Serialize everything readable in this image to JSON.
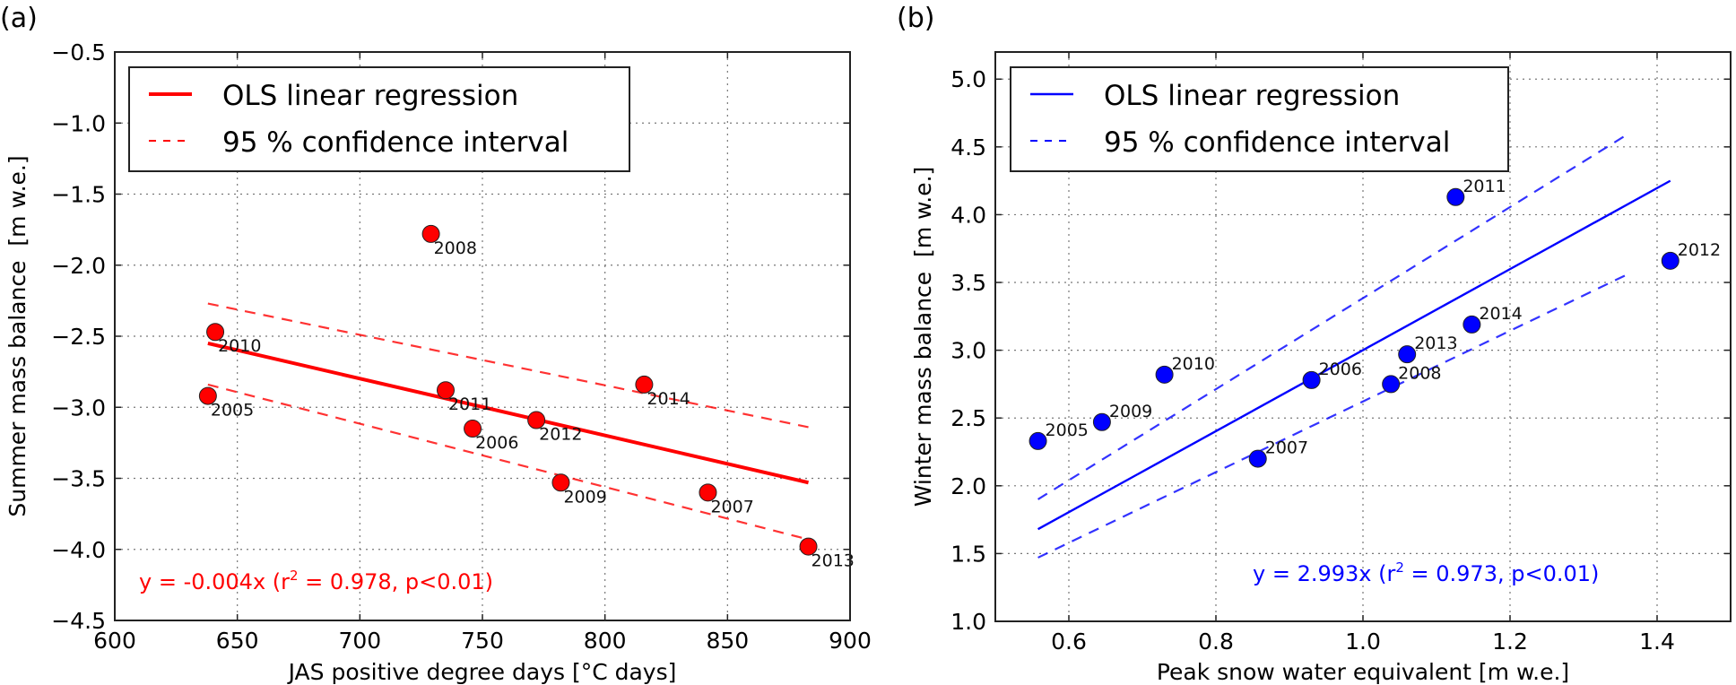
{
  "chart_data": [
    {
      "type": "scatter",
      "panel_label": "(a)",
      "xlabel": "JAS positive degree days [°C days]",
      "ylabel": "Summer mass balance  [m w.e.]",
      "xlim": [
        600,
        900
      ],
      "ylim": [
        -4.5,
        -0.5
      ],
      "xticks": [
        600,
        650,
        700,
        750,
        800,
        850,
        900
      ],
      "xtick_labels": [
        "600",
        "650",
        "700",
        "750",
        "800",
        "850",
        "900"
      ],
      "yticks": [
        -4.5,
        -4.0,
        -3.5,
        -3.0,
        -2.5,
        -2.0,
        -1.5,
        -1.0,
        -0.5
      ],
      "ytick_labels": [
        "−4.5",
        "−4.0",
        "−3.5",
        "−3.0",
        "−2.5",
        "−2.0",
        "−1.5",
        "−1.0",
        "−0.5"
      ],
      "grid": true,
      "color": "#ff0000",
      "legend_position": "top-left",
      "legend": [
        "OLS linear regression",
        "95 % confidence interval"
      ],
      "points": [
        {
          "label": "2005",
          "x": 638,
          "y": -2.92
        },
        {
          "label": "2006",
          "x": 746,
          "y": -3.15
        },
        {
          "label": "2007",
          "x": 842,
          "y": -3.6
        },
        {
          "label": "2008",
          "x": 729,
          "y": -1.78
        },
        {
          "label": "2009",
          "x": 782,
          "y": -3.53
        },
        {
          "label": "2010",
          "x": 641,
          "y": -2.47
        },
        {
          "label": "2011",
          "x": 735,
          "y": -2.88
        },
        {
          "label": "2012",
          "x": 772,
          "y": -3.09
        },
        {
          "label": "2013",
          "x": 883,
          "y": -3.98
        },
        {
          "label": "2014",
          "x": 816,
          "y": -2.84
        }
      ],
      "regression": {
        "x": [
          638,
          883
        ],
        "y": [
          -2.55,
          -3.53
        ]
      },
      "ci_upper": {
        "x": [
          638,
          883
        ],
        "y": [
          -2.27,
          -3.14
        ]
      },
      "ci_lower": {
        "x": [
          638,
          883
        ],
        "y": [
          -2.84,
          -3.93
        ]
      },
      "annotation": {
        "prefix": "y = -0.004x (r",
        "sup": "2",
        "suffix": " = 0.978, p<0.01)"
      }
    },
    {
      "type": "scatter",
      "panel_label": "(b)",
      "xlabel": "Peak snow water equivalent [m w.e.]",
      "ylabel": "Winter mass balance  [m w.e.]",
      "xlim": [
        0.5,
        1.5
      ],
      "ylim": [
        1.0,
        5.2
      ],
      "xticks": [
        0.6,
        0.8,
        1.0,
        1.2,
        1.4
      ],
      "xtick_labels": [
        "0.6",
        "0.8",
        "1.0",
        "1.2",
        "1.4"
      ],
      "yticks": [
        1.0,
        1.5,
        2.0,
        2.5,
        3.0,
        3.5,
        4.0,
        4.5,
        5.0
      ],
      "ytick_labels": [
        "1.0",
        "1.5",
        "2.0",
        "2.5",
        "3.0",
        "3.5",
        "4.0",
        "4.5",
        "5.0"
      ],
      "grid": true,
      "color": "#0000ff",
      "legend_position": "top-left",
      "legend": [
        "OLS linear regression",
        "95 % confidence interval"
      ],
      "points": [
        {
          "label": "2005",
          "x": 0.558,
          "y": 2.33
        },
        {
          "label": "2006",
          "x": 0.93,
          "y": 2.78
        },
        {
          "label": "2007",
          "x": 0.857,
          "y": 2.2
        },
        {
          "label": "2008",
          "x": 1.038,
          "y": 2.75
        },
        {
          "label": "2009",
          "x": 0.645,
          "y": 2.47
        },
        {
          "label": "2010",
          "x": 0.73,
          "y": 2.82
        },
        {
          "label": "2011",
          "x": 1.126,
          "y": 4.13
        },
        {
          "label": "2012",
          "x": 1.418,
          "y": 3.66
        },
        {
          "label": "2013",
          "x": 1.06,
          "y": 2.97
        },
        {
          "label": "2014",
          "x": 1.148,
          "y": 3.19
        }
      ],
      "regression": {
        "x": [
          0.558,
          1.418
        ],
        "y": [
          1.68,
          4.25
        ]
      },
      "ci_upper": {
        "x": [
          0.558,
          1.356
        ],
        "y": [
          1.9,
          4.58
        ]
      },
      "ci_lower": {
        "x": [
          0.558,
          1.356
        ],
        "y": [
          1.47,
          3.55
        ]
      },
      "annotation": {
        "prefix": "y = 2.993x (r",
        "sup": "2",
        "suffix": " = 0.973, p<0.01)"
      }
    }
  ]
}
